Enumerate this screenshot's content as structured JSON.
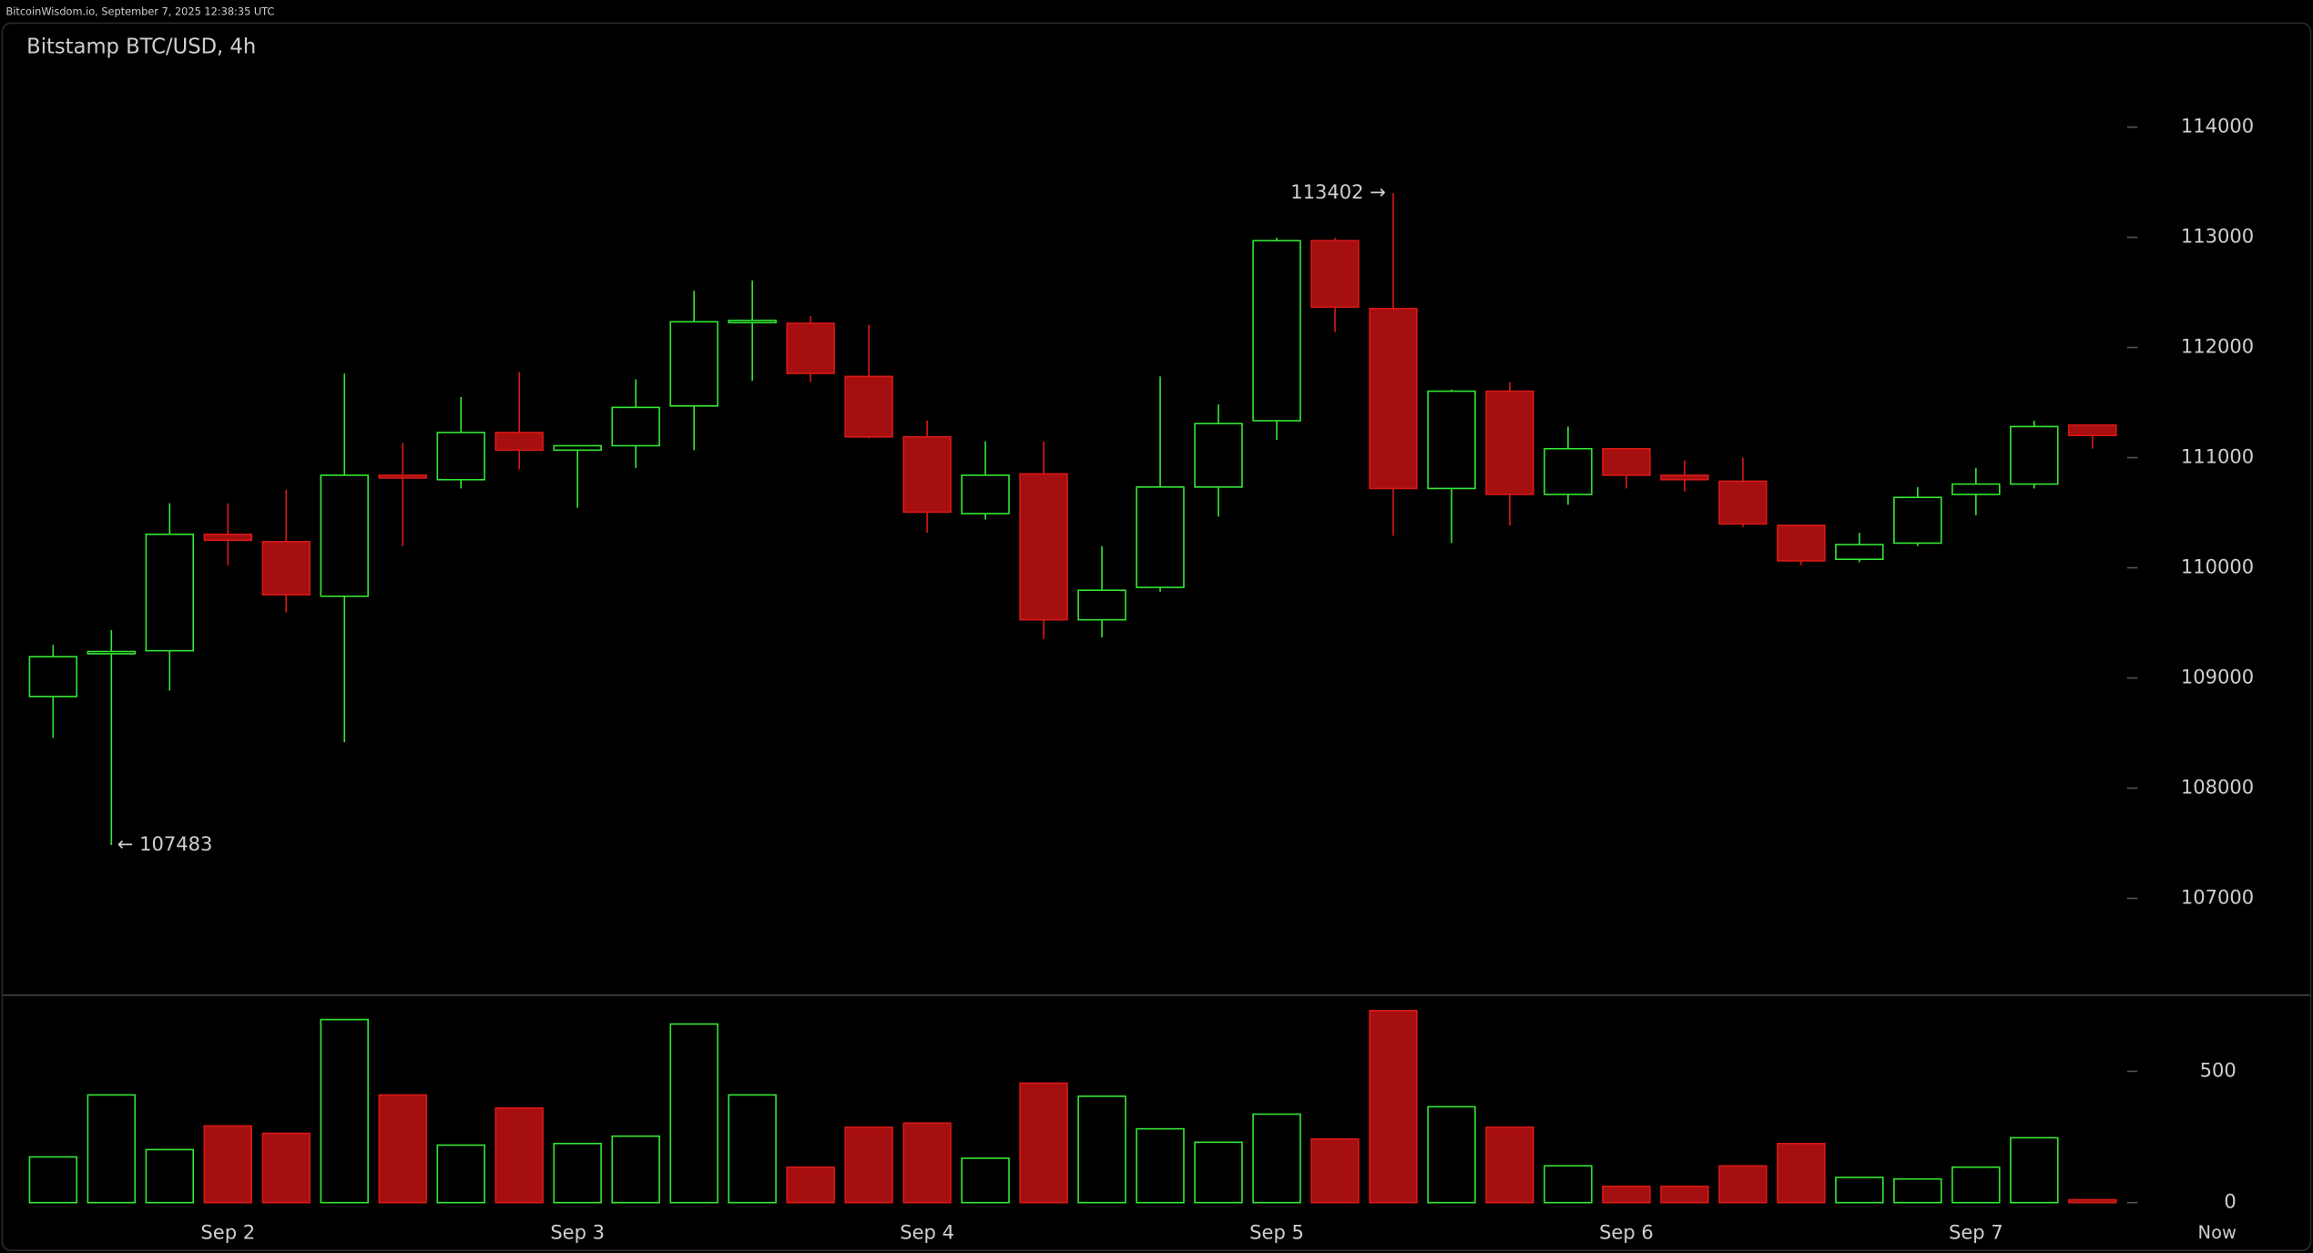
{
  "header": "BitcoinWisdom.io, September 7, 2025 12:38:35 UTC",
  "chart_data": [
    {
      "type": "candlestick",
      "title": "Bitstamp BTC/USD, 4h",
      "categories": [
        null,
        null,
        null,
        "Sep 2",
        null,
        null,
        null,
        null,
        null,
        "Sep 3",
        null,
        null,
        null,
        null,
        null,
        "Sep 4",
        null,
        null,
        null,
        null,
        null,
        "Sep 5",
        null,
        null,
        null,
        null,
        null,
        "Sep 6",
        null,
        null,
        null,
        null,
        null,
        "Sep 7",
        null,
        null
      ],
      "now_label": "Now",
      "open": [
        108832,
        109230,
        109247,
        110304,
        110237,
        109742,
        110840,
        110800,
        111228,
        111068,
        111108,
        111469,
        112233,
        112219,
        111737,
        111188,
        110492,
        110853,
        109528,
        109822,
        110733,
        111335,
        112969,
        112353,
        110720,
        111603,
        110666,
        111081,
        110840,
        110786,
        110385,
        110077,
        110224,
        110666,
        110760,
        111295
      ],
      "high": [
        109300,
        109434,
        110586,
        110586,
        110706,
        111764,
        111134,
        111550,
        111777,
        111108,
        111710,
        112514,
        112607,
        112286,
        112206,
        111335,
        111148,
        111148,
        110197,
        111737,
        111483,
        112996,
        112996,
        113402,
        111617,
        111684,
        111282,
        111081,
        110974,
        111001,
        110385,
        110318,
        110733,
        110907,
        111335,
        111295
      ],
      "low": [
        108457,
        107483,
        108885,
        110023,
        109595,
        108416,
        110197,
        110720,
        110893,
        110545,
        110907,
        111068,
        111697,
        111684,
        111175,
        110318,
        110438,
        109354,
        109367,
        109782,
        110465,
        111161,
        112139,
        110291,
        110224,
        110385,
        110572,
        110720,
        110693,
        110371,
        110023,
        110050,
        110197,
        110478,
        110720,
        111081
      ],
      "close": [
        109193,
        109240,
        110304,
        110250,
        109755,
        110840,
        110815,
        111228,
        111068,
        111108,
        111456,
        112233,
        112245,
        111764,
        111188,
        110505,
        110840,
        109528,
        109796,
        110733,
        111309,
        112969,
        112367,
        110720,
        111603,
        110666,
        111081,
        110840,
        110800,
        110398,
        110063,
        110211,
        110639,
        110760,
        111282,
        111201
      ],
      "max_label": "113402 →",
      "min_label": "← 107483",
      "up_color": "#33e633",
      "down_color": "#a50f0f",
      "down_edge": "#d81818",
      "ylim": [
        106140,
        114950
      ],
      "yticks": [
        107000,
        108000,
        109000,
        110000,
        111000,
        112000,
        113000,
        114000
      ]
    },
    {
      "type": "bar",
      "values": [
        174,
        410,
        202,
        292,
        264,
        697,
        410,
        219,
        360,
        225,
        253,
        680,
        410,
        135,
        287,
        303,
        169,
        455,
        405,
        281,
        230,
        337,
        242,
        731,
        365,
        287,
        140,
        62,
        62,
        140,
        225,
        96,
        90,
        135,
        247,
        11
      ],
      "ylim": [
        -67,
        781
      ],
      "yticks": [
        0,
        500
      ]
    }
  ]
}
